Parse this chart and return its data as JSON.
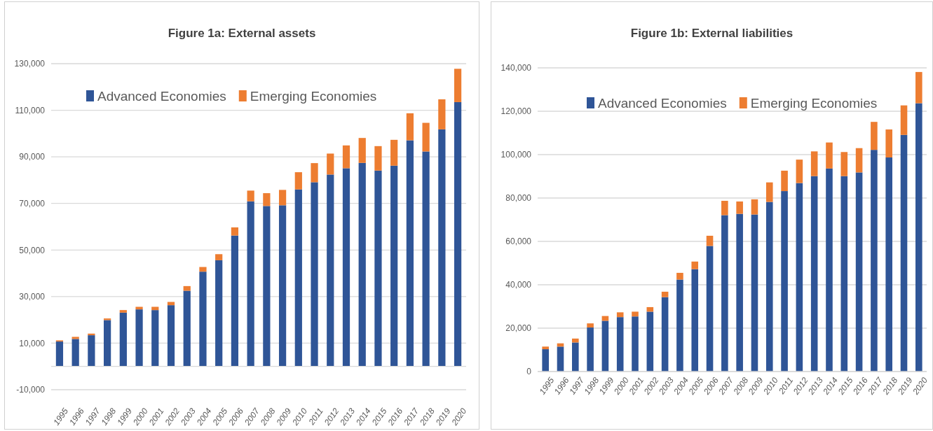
{
  "chart_data": [
    {
      "type": "bar",
      "title": "Figure 1a: External assets",
      "stacked": true,
      "categories": [
        "1995",
        "1996",
        "1997",
        "1998",
        "1999",
        "2000",
        "2001",
        "2002",
        "2003",
        "2004",
        "2005",
        "2006",
        "2007",
        "2008",
        "2009",
        "2010",
        "2011",
        "2012",
        "2013",
        "2014",
        "2015",
        "2016",
        "2017",
        "2018",
        "2019",
        "2020"
      ],
      "series": [
        {
          "name": "Advanced Economies",
          "color": "#2f5597",
          "values": [
            10700,
            11800,
            13400,
            19900,
            23100,
            24500,
            24200,
            26300,
            32500,
            40700,
            45600,
            56200,
            70900,
            68900,
            69200,
            76000,
            79100,
            82400,
            85100,
            87400,
            84100,
            86200,
            97100,
            92300,
            101800,
            113500
          ]
        },
        {
          "name": "Emerging Economies",
          "color": "#ed7d31",
          "values": [
            500,
            900,
            700,
            700,
            1100,
            1100,
            1400,
            1400,
            2000,
            2000,
            2600,
            3500,
            4600,
            5500,
            6600,
            7400,
            8200,
            9000,
            9800,
            10700,
            10500,
            11100,
            11600,
            12300,
            12900,
            14300
          ]
        }
      ],
      "ylim": [
        -10000,
        130000
      ],
      "yticks": [
        {
          "value": -10000,
          "label": "-10,000"
        },
        {
          "value": 10000,
          "label": "10,000"
        },
        {
          "value": 30000,
          "label": "30,000"
        },
        {
          "value": 50000,
          "label": "50,000"
        },
        {
          "value": 70000,
          "label": "70,000"
        },
        {
          "value": 90000,
          "label": "90,000"
        },
        {
          "value": 110000,
          "label": "110,000"
        },
        {
          "value": 130000,
          "label": "130,000"
        }
      ],
      "grid": "y",
      "legend": "top left"
    },
    {
      "type": "bar",
      "title": "Figure 1b: External liabilities",
      "stacked": true,
      "categories": [
        "1995",
        "1996",
        "1997",
        "1998",
        "1999",
        "2000",
        "2001",
        "2002",
        "2003",
        "2004",
        "2005",
        "2006",
        "2007",
        "2008",
        "2009",
        "2010",
        "2011",
        "2012",
        "2013",
        "2014",
        "2015",
        "2016",
        "2017",
        "2018",
        "2019",
        "2020"
      ],
      "series": [
        {
          "name": "Advanced Economies",
          "color": "#2f5597",
          "values": [
            10300,
            11500,
            13400,
            20300,
            23400,
            25100,
            25400,
            27600,
            34300,
            42400,
            47200,
            57900,
            72100,
            72700,
            72400,
            78200,
            83200,
            86900,
            90100,
            93600,
            90100,
            91800,
            102200,
            98700,
            109100,
            123700
          ]
        },
        {
          "name": "Emerging Economies",
          "color": "#ed7d31",
          "values": [
            1200,
            1500,
            1800,
            1900,
            2200,
            2200,
            2200,
            2100,
            2500,
            3100,
            3500,
            4700,
            6600,
            5700,
            7000,
            9000,
            9400,
            10800,
            11400,
            12000,
            11100,
            11200,
            12900,
            12900,
            13600,
            14400
          ]
        }
      ],
      "ylim": [
        0,
        140000
      ],
      "yticks": [
        {
          "value": 0,
          "label": "0"
        },
        {
          "value": 20000,
          "label": "20,000"
        },
        {
          "value": 40000,
          "label": "40,000"
        },
        {
          "value": 60000,
          "label": "60,000"
        },
        {
          "value": 80000,
          "label": "80,000"
        },
        {
          "value": 100000,
          "label": "100,000"
        },
        {
          "value": 120000,
          "label": "120,000"
        },
        {
          "value": 140000,
          "label": "140,000"
        }
      ],
      "grid": "y",
      "legend": "top left"
    }
  ]
}
